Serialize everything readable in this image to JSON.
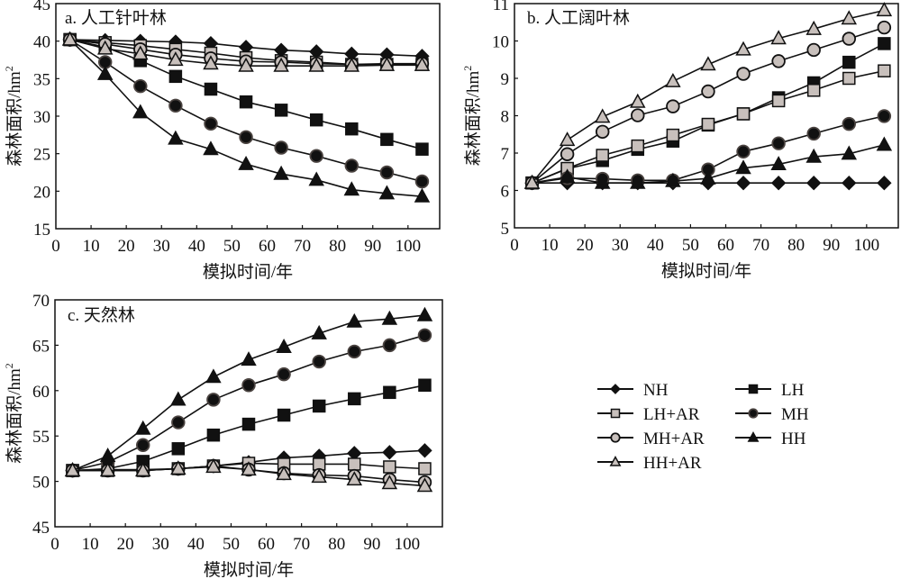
{
  "colors": {
    "line": "#111111",
    "marker_dark": "#111111",
    "marker_gray": "#c8c0bc",
    "marker_ring": "#4a4340",
    "frame": "#111111"
  },
  "legend": {
    "position": "right-bottom",
    "entries": [
      {
        "name": "NH",
        "marker": "diamond-icon"
      },
      {
        "name": "LH",
        "marker": "filled-square-icon"
      },
      {
        "name": "LH+AR",
        "marker": "gray-square-icon"
      },
      {
        "name": "MH",
        "marker": "ringed-circle-icon"
      },
      {
        "name": "MH+AR",
        "marker": "gray-circle-icon"
      },
      {
        "name": "HH",
        "marker": "filled-triangle-icon"
      },
      {
        "name": "HH+AR",
        "marker": "gray-triangle-icon"
      }
    ]
  },
  "chart_data": [
    {
      "type": "line",
      "title": "a. 人工针叶林",
      "xlabel": "模拟时间/年",
      "ylabel": "森林面积/hm",
      "ylabel_sup": "2",
      "xlim": [
        0,
        109
      ],
      "ylim": [
        15,
        45
      ],
      "xticks": [
        "0",
        "10",
        "20",
        "30",
        "40",
        "50",
        "60",
        "70",
        "80",
        "90",
        "100"
      ],
      "yticks": [
        "15",
        "20",
        "25",
        "30",
        "35",
        "40",
        "45"
      ],
      "x": [
        4,
        14,
        24,
        34,
        44,
        54,
        64,
        74,
        84,
        94,
        104
      ],
      "series": [
        {
          "name": "NH",
          "values": [
            40.2,
            40.1,
            40.0,
            39.9,
            39.7,
            39.2,
            38.8,
            38.6,
            38.3,
            38.2,
            38.0
          ]
        },
        {
          "name": "LH",
          "values": [
            40.2,
            39.2,
            37.4,
            35.3,
            33.6,
            31.9,
            30.8,
            29.5,
            28.3,
            26.9,
            25.6
          ]
        },
        {
          "name": "LH+AR",
          "values": [
            40.2,
            39.8,
            39.4,
            38.9,
            38.4,
            37.8,
            37.4,
            37.2,
            36.9,
            36.9,
            36.9
          ]
        },
        {
          "name": "MH",
          "values": [
            40.2,
            37.2,
            34.0,
            31.4,
            29.0,
            27.2,
            25.8,
            24.7,
            23.4,
            22.5,
            21.3
          ]
        },
        {
          "name": "MH+AR",
          "values": [
            40.2,
            39.6,
            38.9,
            38.2,
            37.7,
            37.3,
            37.2,
            37.0,
            36.9,
            37.0,
            37.0
          ]
        },
        {
          "name": "HH",
          "values": [
            40.2,
            35.6,
            30.5,
            27.0,
            25.6,
            23.6,
            22.3,
            21.5,
            20.2,
            19.7,
            19.3
          ]
        },
        {
          "name": "HH+AR",
          "values": [
            40.2,
            39.0,
            38.3,
            37.5,
            37.0,
            36.7,
            36.7,
            36.7,
            36.7,
            36.8,
            36.8
          ]
        }
      ]
    },
    {
      "type": "line",
      "title": "b. 人工阔叶林",
      "xlabel": "模拟时间/年",
      "ylabel": "森林面积/hm",
      "ylabel_sup": "2",
      "xlim": [
        0,
        109
      ],
      "ylim": [
        5,
        11
      ],
      "xticks": [
        "0",
        "10",
        "20",
        "30",
        "40",
        "50",
        "60",
        "70",
        "80",
        "90",
        "100"
      ],
      "yticks": [
        "5",
        "6",
        "7",
        "8",
        "9",
        "10",
        "11"
      ],
      "x": [
        5,
        15,
        25,
        35,
        45,
        55,
        65,
        75,
        85,
        95,
        105
      ],
      "series": [
        {
          "name": "NH",
          "values": [
            6.2,
            6.2,
            6.2,
            6.2,
            6.2,
            6.2,
            6.2,
            6.2,
            6.2,
            6.2,
            6.2
          ]
        },
        {
          "name": "LH",
          "values": [
            6.2,
            6.58,
            6.8,
            7.1,
            7.32,
            7.75,
            8.05,
            8.48,
            8.88,
            9.43,
            9.93
          ]
        },
        {
          "name": "LH+AR",
          "values": [
            6.2,
            6.59,
            6.94,
            7.19,
            7.48,
            7.77,
            8.05,
            8.4,
            8.68,
            9.0,
            9.2
          ]
        },
        {
          "name": "MH",
          "values": [
            6.2,
            6.33,
            6.31,
            6.27,
            6.27,
            6.56,
            7.04,
            7.26,
            7.52,
            7.78,
            7.99
          ]
        },
        {
          "name": "MH+AR",
          "values": [
            6.2,
            6.97,
            7.57,
            8.01,
            8.25,
            8.65,
            9.12,
            9.46,
            9.76,
            10.06,
            10.36
          ]
        },
        {
          "name": "HH",
          "values": [
            6.2,
            6.36,
            6.2,
            6.2,
            6.25,
            6.32,
            6.6,
            6.7,
            6.9,
            6.98,
            7.22
          ]
        },
        {
          "name": "HH+AR",
          "values": [
            6.2,
            7.35,
            7.97,
            8.37,
            8.92,
            9.37,
            9.77,
            10.07,
            10.32,
            10.6,
            10.82
          ]
        }
      ]
    },
    {
      "type": "line",
      "title": "c. 天然林",
      "xlabel": "模拟时间/年",
      "ylabel": "森林面积/hm",
      "ylabel_sup": "2",
      "xlim": [
        0,
        110
      ],
      "ylim": [
        45,
        70
      ],
      "xticks": [
        "0",
        "10",
        "20",
        "30",
        "40",
        "50",
        "60",
        "70",
        "80",
        "90",
        "100"
      ],
      "yticks": [
        "45",
        "50",
        "55",
        "60",
        "65",
        "70"
      ],
      "x": [
        5,
        15,
        25,
        35,
        45,
        55,
        65,
        75,
        85,
        95,
        105
      ],
      "series": [
        {
          "name": "NH",
          "values": [
            51.2,
            51.3,
            51.3,
            51.4,
            51.7,
            52.1,
            52.6,
            52.8,
            53.1,
            53.2,
            53.4
          ]
        },
        {
          "name": "LH",
          "values": [
            51.2,
            51.4,
            52.2,
            53.6,
            55.1,
            56.3,
            57.3,
            58.3,
            59.1,
            59.8,
            60.6
          ]
        },
        {
          "name": "LH+AR",
          "values": [
            51.2,
            51.2,
            51.2,
            51.4,
            51.7,
            52.0,
            51.9,
            51.9,
            51.9,
            51.6,
            51.4
          ]
        },
        {
          "name": "MH",
          "values": [
            51.2,
            52.1,
            54.0,
            56.5,
            59.0,
            60.6,
            61.8,
            63.2,
            64.3,
            65.0,
            66.1
          ]
        },
        {
          "name": "MH+AR",
          "values": [
            51.2,
            51.2,
            51.2,
            51.4,
            51.7,
            51.3,
            50.9,
            50.7,
            50.6,
            50.2,
            49.9
          ]
        },
        {
          "name": "HH",
          "values": [
            51.2,
            52.8,
            55.8,
            59.0,
            61.5,
            63.4,
            64.8,
            66.3,
            67.6,
            67.9,
            68.3
          ]
        },
        {
          "name": "HH+AR",
          "values": [
            51.2,
            51.2,
            51.2,
            51.4,
            51.6,
            51.3,
            50.8,
            50.5,
            50.2,
            49.8,
            49.5
          ]
        }
      ]
    }
  ]
}
